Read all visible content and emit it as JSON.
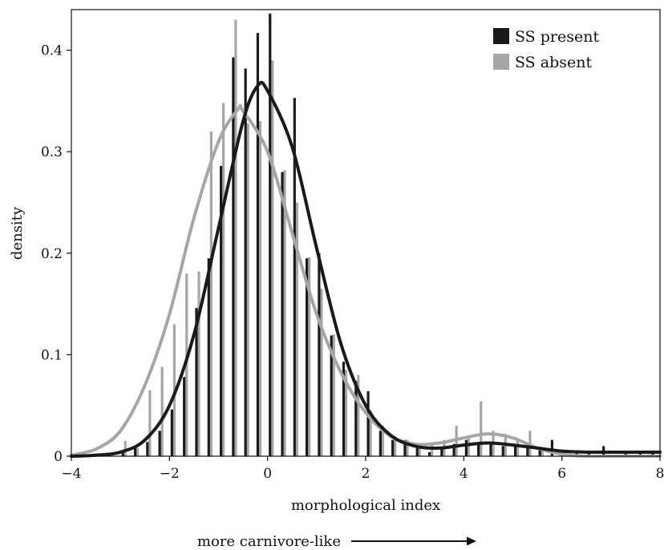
{
  "chart_data": {
    "type": "bar",
    "xlabel": "morphological index",
    "ylabel": "density",
    "xlim": [
      -4,
      8
    ],
    "ylim": [
      0,
      0.44
    ],
    "x_ticks": [
      "−4",
      "−2",
      "0",
      "2",
      "4",
      "6",
      "8"
    ],
    "y_ticks": [
      "0",
      "0.1",
      "0.2",
      "0.3",
      "0.4"
    ],
    "annotation": "more carnivore-like",
    "grid": false,
    "legend_position": "top-right",
    "series": [
      {
        "name": "SS present",
        "color": "#1a1a1a",
        "bins": [
          {
            "x": -2.95,
            "y": 0.004
          },
          {
            "x": -2.7,
            "y": 0.01
          },
          {
            "x": -2.45,
            "y": 0.014
          },
          {
            "x": -2.2,
            "y": 0.025
          },
          {
            "x": -1.95,
            "y": 0.046
          },
          {
            "x": -1.7,
            "y": 0.078
          },
          {
            "x": -1.45,
            "y": 0.146
          },
          {
            "x": -1.2,
            "y": 0.195
          },
          {
            "x": -0.95,
            "y": 0.286
          },
          {
            "x": -0.7,
            "y": 0.393
          },
          {
            "x": -0.45,
            "y": 0.382
          },
          {
            "x": -0.2,
            "y": 0.417
          },
          {
            "x": 0.05,
            "y": 0.436
          },
          {
            "x": 0.3,
            "y": 0.28
          },
          {
            "x": 0.55,
            "y": 0.353
          },
          {
            "x": 0.8,
            "y": 0.195
          },
          {
            "x": 1.05,
            "y": 0.2
          },
          {
            "x": 1.3,
            "y": 0.119
          },
          {
            "x": 1.55,
            "y": 0.093
          },
          {
            "x": 1.8,
            "y": 0.074
          },
          {
            "x": 2.05,
            "y": 0.064
          },
          {
            "x": 2.3,
            "y": 0.025
          },
          {
            "x": 2.55,
            "y": 0.016
          },
          {
            "x": 2.8,
            "y": 0.016
          },
          {
            "x": 3.05,
            "y": 0.012
          },
          {
            "x": 3.3,
            "y": 0.004
          },
          {
            "x": 3.55,
            "y": 0.008
          },
          {
            "x": 3.8,
            "y": 0.012
          },
          {
            "x": 4.05,
            "y": 0.016
          },
          {
            "x": 4.3,
            "y": 0.014
          },
          {
            "x": 4.55,
            "y": 0.012
          },
          {
            "x": 4.8,
            "y": 0.01
          },
          {
            "x": 5.05,
            "y": 0.012
          },
          {
            "x": 5.3,
            "y": 0.008
          },
          {
            "x": 5.55,
            "y": 0.006
          },
          {
            "x": 5.8,
            "y": 0.016
          },
          {
            "x": 6.05,
            "y": 0.004
          },
          {
            "x": 6.3,
            "y": 0.004
          },
          {
            "x": 6.55,
            "y": 0.004
          },
          {
            "x": 6.85,
            "y": 0.01
          },
          {
            "x": 7.3,
            "y": 0.005
          },
          {
            "x": 7.6,
            "y": 0.005
          },
          {
            "x": 7.85,
            "y": 0.005
          }
        ],
        "curve": [
          [
            -4,
            0.0
          ],
          [
            -3.5,
            0.001
          ],
          [
            -3,
            0.004
          ],
          [
            -2.5,
            0.016
          ],
          [
            -2,
            0.05
          ],
          [
            -1.5,
            0.12
          ],
          [
            -1,
            0.225
          ],
          [
            -0.5,
            0.33
          ],
          [
            -0.2,
            0.365
          ],
          [
            0,
            0.36
          ],
          [
            0.5,
            0.305
          ],
          [
            1,
            0.205
          ],
          [
            1.5,
            0.11
          ],
          [
            2,
            0.05
          ],
          [
            2.5,
            0.021
          ],
          [
            3,
            0.01
          ],
          [
            3.5,
            0.008
          ],
          [
            4,
            0.011
          ],
          [
            4.5,
            0.013
          ],
          [
            5,
            0.011
          ],
          [
            5.5,
            0.008
          ],
          [
            6,
            0.005
          ],
          [
            6.5,
            0.004
          ],
          [
            7,
            0.004
          ],
          [
            7.5,
            0.004
          ],
          [
            8,
            0.004
          ]
        ]
      },
      {
        "name": "SS absent",
        "color": "#a6a6a6",
        "bins": [
          {
            "x": -2.9,
            "y": 0.015
          },
          {
            "x": -2.65,
            "y": 0.008
          },
          {
            "x": -2.4,
            "y": 0.065
          },
          {
            "x": -2.15,
            "y": 0.088
          },
          {
            "x": -1.9,
            "y": 0.13
          },
          {
            "x": -1.65,
            "y": 0.18
          },
          {
            "x": -1.4,
            "y": 0.182
          },
          {
            "x": -1.15,
            "y": 0.32
          },
          {
            "x": -0.9,
            "y": 0.348
          },
          {
            "x": -0.65,
            "y": 0.43
          },
          {
            "x": -0.4,
            "y": 0.328
          },
          {
            "x": -0.15,
            "y": 0.33
          },
          {
            "x": 0.1,
            "y": 0.39
          },
          {
            "x": 0.35,
            "y": 0.282
          },
          {
            "x": 0.6,
            "y": 0.25
          },
          {
            "x": 0.85,
            "y": 0.196
          },
          {
            "x": 1.1,
            "y": 0.165
          },
          {
            "x": 1.35,
            "y": 0.12
          },
          {
            "x": 1.6,
            "y": 0.085
          },
          {
            "x": 1.85,
            "y": 0.08
          },
          {
            "x": 2.1,
            "y": 0.045
          },
          {
            "x": 2.35,
            "y": 0.03
          },
          {
            "x": 2.6,
            "y": 0.02
          },
          {
            "x": 2.85,
            "y": 0.016
          },
          {
            "x": 3.1,
            "y": 0.012
          },
          {
            "x": 3.35,
            "y": 0.012
          },
          {
            "x": 3.6,
            "y": 0.016
          },
          {
            "x": 3.85,
            "y": 0.03
          },
          {
            "x": 4.1,
            "y": 0.02
          },
          {
            "x": 4.35,
            "y": 0.054
          },
          {
            "x": 4.6,
            "y": 0.025
          },
          {
            "x": 4.85,
            "y": 0.022
          },
          {
            "x": 5.1,
            "y": 0.015
          },
          {
            "x": 5.35,
            "y": 0.025
          },
          {
            "x": 5.6,
            "y": 0.008
          }
        ],
        "curve": [
          [
            -4,
            0.001
          ],
          [
            -3.5,
            0.007
          ],
          [
            -3,
            0.025
          ],
          [
            -2.5,
            0.07
          ],
          [
            -2,
            0.14
          ],
          [
            -1.5,
            0.235
          ],
          [
            -1,
            0.31
          ],
          [
            -0.6,
            0.342
          ],
          [
            -0.5,
            0.34
          ],
          [
            0,
            0.3
          ],
          [
            0.5,
            0.22
          ],
          [
            1,
            0.14
          ],
          [
            1.5,
            0.082
          ],
          [
            2,
            0.043
          ],
          [
            2.5,
            0.02
          ],
          [
            3,
            0.012
          ],
          [
            3.5,
            0.013
          ],
          [
            4,
            0.018
          ],
          [
            4.5,
            0.022
          ],
          [
            5,
            0.018
          ],
          [
            5.5,
            0.008
          ],
          [
            6,
            0.002
          ],
          [
            6.5,
            0.0
          ],
          [
            7,
            0.0
          ],
          [
            8,
            0.0
          ]
        ]
      }
    ]
  }
}
